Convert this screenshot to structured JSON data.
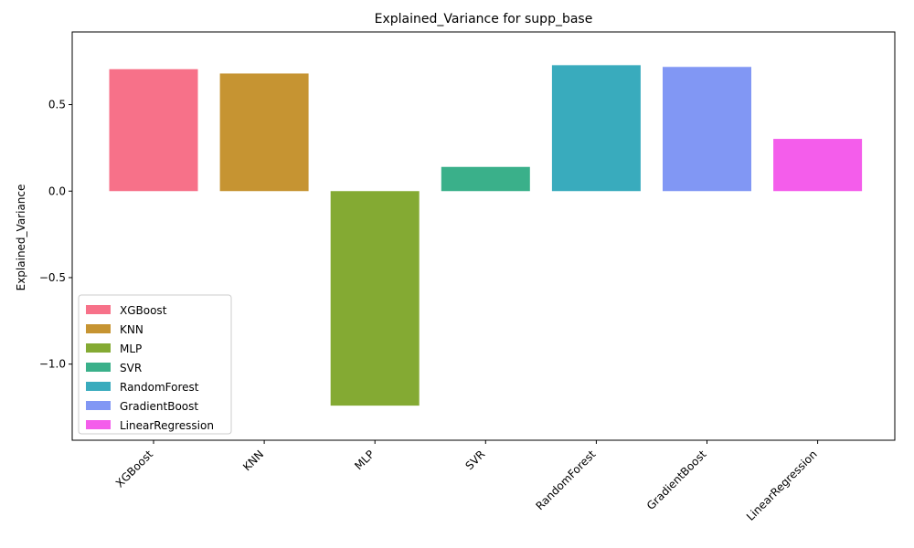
{
  "chart_data": {
    "type": "bar",
    "title": "Explained_Variance for supp_base",
    "xlabel": "",
    "ylabel": "Explained_Variance",
    "categories": [
      "XGBoost",
      "KNN",
      "MLP",
      "SVR",
      "RandomForest",
      "GradientBoost",
      "LinearRegression"
    ],
    "values": [
      0.705,
      0.68,
      -1.24,
      0.14,
      0.728,
      0.718,
      0.302
    ],
    "colors": [
      "#f77189",
      "#c69432",
      "#84aa33",
      "#3ab08a",
      "#39abbd",
      "#8197f4",
      "#f45deb"
    ],
    "ylim": [
      -1.44,
      0.92
    ],
    "yticks": [
      -1.0,
      -0.5,
      0.0,
      0.5
    ],
    "ytick_labels": [
      "−1.0",
      "−0.5",
      "0.0",
      "0.5"
    ],
    "grid": false,
    "legend": {
      "position": "lower-left",
      "entries": [
        "XGBoost",
        "KNN",
        "MLP",
        "SVR",
        "RandomForest",
        "GradientBoost",
        "LinearRegression"
      ]
    }
  }
}
